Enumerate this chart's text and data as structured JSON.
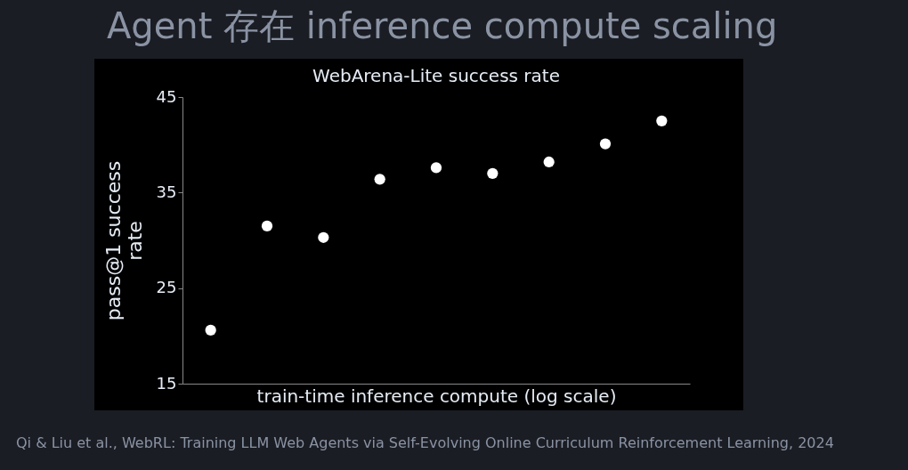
{
  "chart_data": {
    "type": "scatter",
    "title": "Agent 存在 inference compute scaling",
    "subtitle": "WebArena-Lite success rate",
    "xlabel": "train-time inference compute (log scale)",
    "ylabel": "pass@1 success rate",
    "categories": [
      null,
      null,
      null,
      null,
      null,
      null,
      null,
      null,
      null
    ],
    "series": [
      {
        "color": "#ffffff",
        "values": [
          20.6,
          31.5,
          30.3,
          36.4,
          37.6,
          37.0,
          38.2,
          40.1,
          42.5
        ]
      }
    ],
    "ylim": [
      15,
      45
    ],
    "yticks": [
      15,
      25,
      35,
      45
    ],
    "tick_labels": "y",
    "marker": "circle",
    "annotations": [
      "Qi & Liu et al., WebRL: Training LLM Web Agents via Self-Evolving Online Curriculum Reinforcement Learning, 2024"
    ]
  }
}
